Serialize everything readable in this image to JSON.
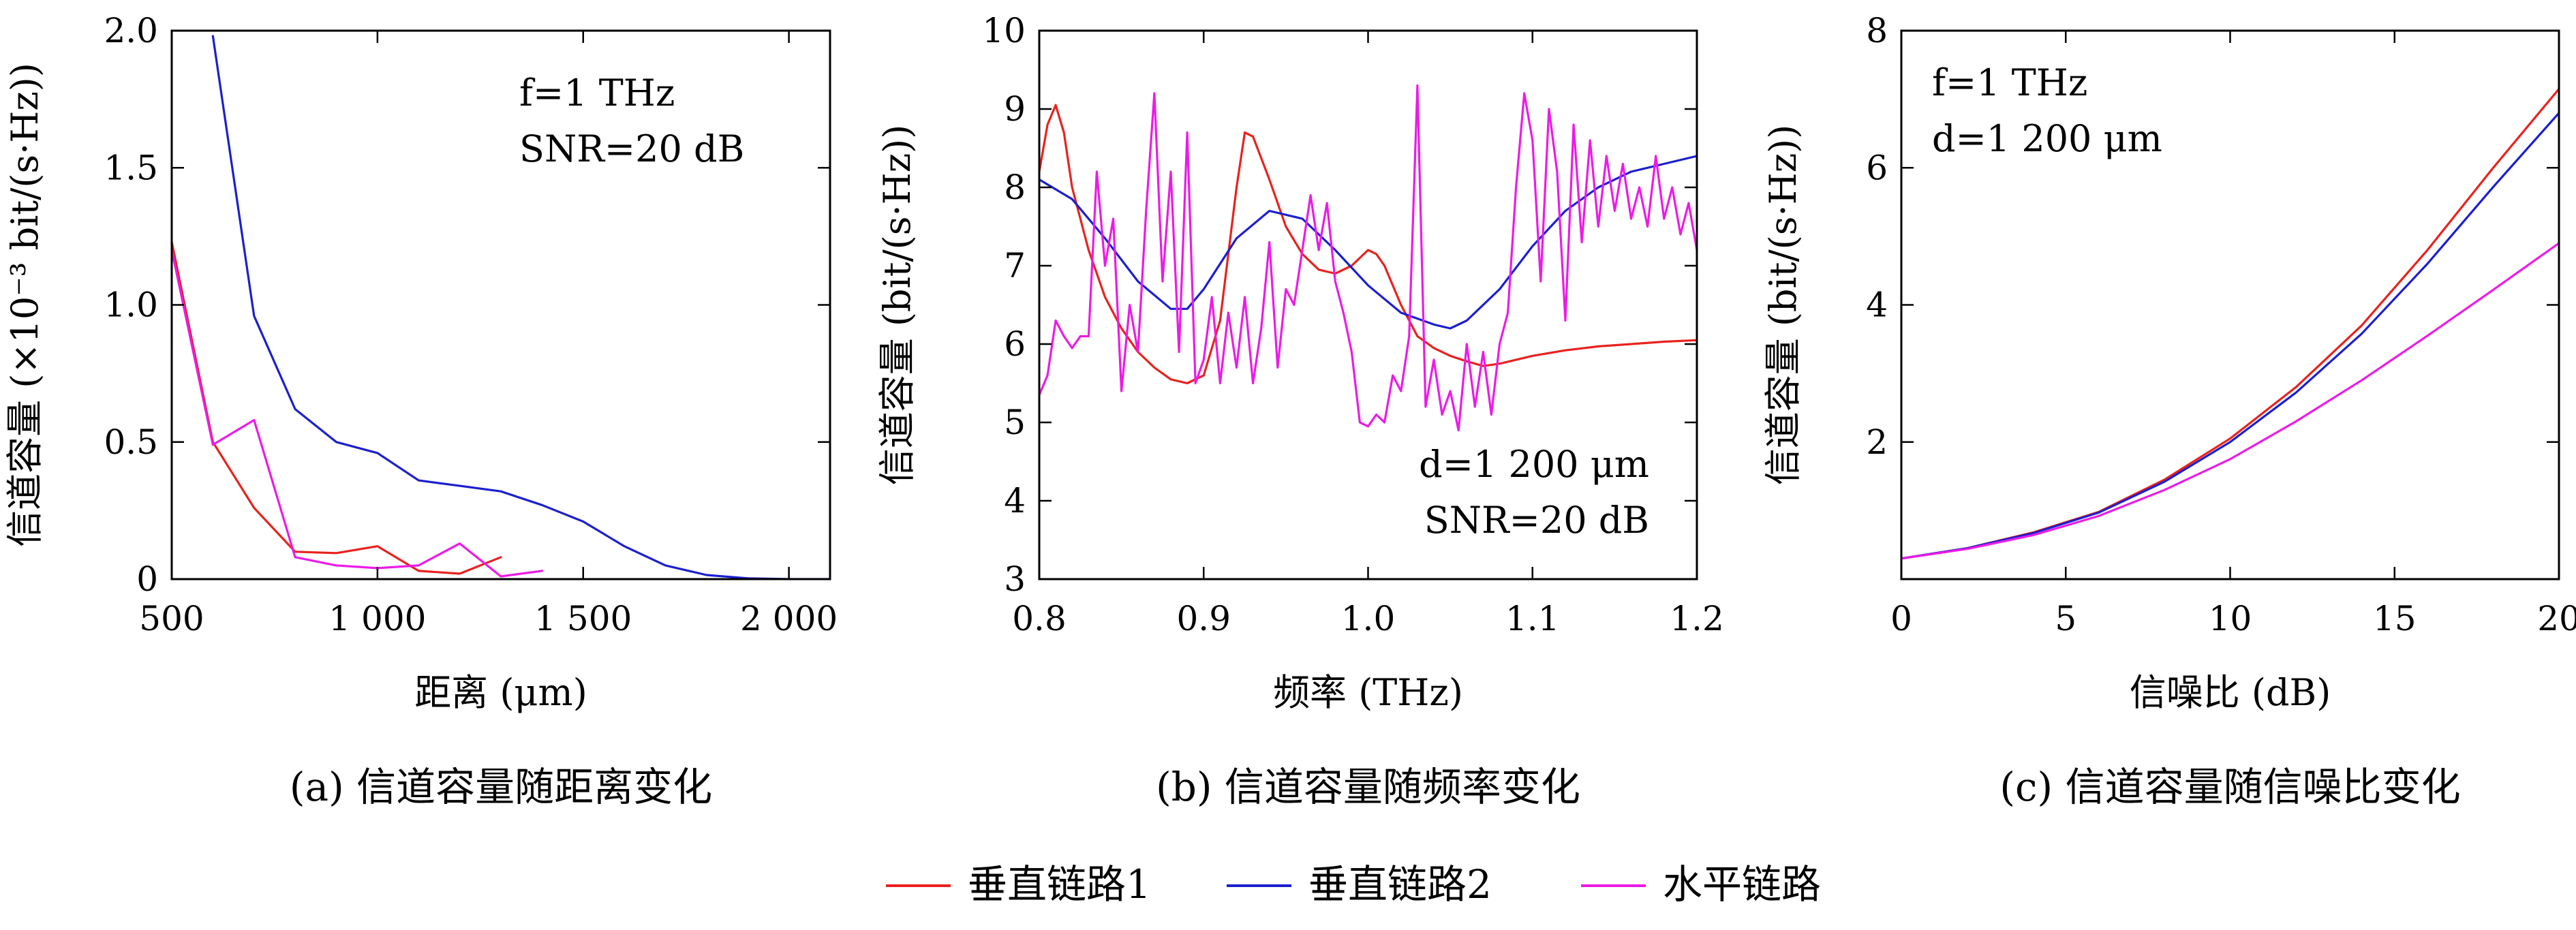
{
  "colors": {
    "red": "#e8221e",
    "blue": "#1b1fcf",
    "magenta": "#ec1be6"
  },
  "legend": [
    {
      "label": "垂直链路1",
      "color": "#e8221e"
    },
    {
      "label": "垂直链路2",
      "color": "#1b1fcf"
    },
    {
      "label": "水平链路",
      "color": "#ec1be6"
    }
  ],
  "chart_data": [
    {
      "type": "line",
      "caption": "(a) 信道容量随距离变化",
      "xlabel": "距离 (μm)",
      "ylabel": "信道容量 (×10⁻³ bit/(s·Hz))",
      "xlim": [
        500,
        2100
      ],
      "ylim": [
        0,
        2.0
      ],
      "xticks": [
        500,
        1000,
        1500,
        2000
      ],
      "xtick_labels": [
        "500",
        "1 000",
        "1 500",
        "2 000"
      ],
      "yticks": [
        0,
        0.5,
        1.0,
        1.5,
        2.0
      ],
      "ytick_labels": [
        "0",
        "0.5",
        "1.0",
        "1.5",
        "2.0"
      ],
      "annotations": [
        "f=1 THz",
        "SNR=20 dB"
      ],
      "series": [
        {
          "name": "垂直链路1",
          "color": "#e8221e",
          "x": [
            500,
            600,
            700,
            800,
            900,
            1000,
            1100,
            1200,
            1300
          ],
          "y": [
            1.23,
            0.5,
            0.26,
            0.1,
            0.095,
            0.12,
            0.03,
            0.02,
            0.08
          ]
        },
        {
          "name": "垂直链路2",
          "color": "#1b1fcf",
          "x": [
            600,
            700,
            800,
            900,
            1000,
            1100,
            1200,
            1300,
            1400,
            1500,
            1600,
            1700,
            1800,
            1900,
            2000,
            2100
          ],
          "y": [
            1.98,
            0.96,
            0.62,
            0.5,
            0.46,
            0.36,
            0.34,
            0.32,
            0.27,
            0.21,
            0.12,
            0.05,
            0.015,
            0.003,
            0.0,
            0.0
          ]
        },
        {
          "name": "水平链路",
          "color": "#ec1be6",
          "x": [
            500,
            600,
            700,
            800,
            900,
            1000,
            1100,
            1200,
            1300,
            1400
          ],
          "y": [
            1.2,
            0.49,
            0.58,
            0.08,
            0.05,
            0.04,
            0.05,
            0.13,
            0.01,
            0.03
          ]
        }
      ]
    },
    {
      "type": "line",
      "caption": "(b) 信道容量随频率变化",
      "xlabel": "频率 (THz)",
      "ylabel": "信道容量 (bit/(s·Hz))",
      "xlim": [
        0.8,
        1.2
      ],
      "ylim": [
        3,
        10
      ],
      "xticks": [
        0.8,
        0.9,
        1.0,
        1.1,
        1.2
      ],
      "xtick_labels": [
        "0.8",
        "0.9",
        "1.0",
        "1.1",
        "1.2"
      ],
      "yticks": [
        3,
        4,
        5,
        6,
        7,
        8,
        9,
        10
      ],
      "ytick_labels": [
        "3",
        "4",
        "5",
        "6",
        "7",
        "8",
        "9",
        "10"
      ],
      "annotations": [
        "d=1 200 μm",
        "SNR=20 dB"
      ],
      "series": [
        {
          "name": "垂直链路1",
          "color": "#e8221e",
          "x": [
            0.8,
            0.805,
            0.81,
            0.815,
            0.82,
            0.83,
            0.84,
            0.85,
            0.86,
            0.87,
            0.88,
            0.89,
            0.9,
            0.91,
            0.92,
            0.925,
            0.93,
            0.94,
            0.95,
            0.96,
            0.97,
            0.98,
            0.99,
            1.0,
            1.005,
            1.01,
            1.02,
            1.03,
            1.04,
            1.05,
            1.06,
            1.07,
            1.08,
            1.1,
            1.12,
            1.14,
            1.16,
            1.18,
            1.2
          ],
          "y": [
            8.2,
            8.8,
            9.05,
            8.7,
            8.0,
            7.2,
            6.6,
            6.2,
            5.9,
            5.7,
            5.55,
            5.5,
            5.6,
            6.3,
            8.0,
            8.7,
            8.65,
            8.1,
            7.5,
            7.15,
            6.95,
            6.9,
            7.0,
            7.2,
            7.15,
            7.0,
            6.5,
            6.1,
            5.95,
            5.85,
            5.78,
            5.72,
            5.75,
            5.85,
            5.92,
            5.97,
            6.0,
            6.03,
            6.05
          ]
        },
        {
          "name": "垂直链路2",
          "color": "#1b1fcf",
          "x": [
            0.8,
            0.82,
            0.84,
            0.86,
            0.88,
            0.89,
            0.9,
            0.92,
            0.94,
            0.96,
            0.98,
            1.0,
            1.02,
            1.04,
            1.05,
            1.06,
            1.08,
            1.1,
            1.12,
            1.14,
            1.16,
            1.18,
            1.2
          ],
          "y": [
            8.1,
            7.85,
            7.35,
            6.8,
            6.45,
            6.45,
            6.7,
            7.35,
            7.7,
            7.6,
            7.2,
            6.75,
            6.4,
            6.25,
            6.2,
            6.3,
            6.7,
            7.25,
            7.7,
            8.0,
            8.2,
            8.3,
            8.4
          ]
        },
        {
          "name": "水平链路",
          "color": "#ec1be6",
          "x": [
            0.8,
            0.805,
            0.81,
            0.815,
            0.82,
            0.825,
            0.83,
            0.835,
            0.84,
            0.845,
            0.85,
            0.855,
            0.86,
            0.865,
            0.87,
            0.875,
            0.88,
            0.885,
            0.89,
            0.895,
            0.9,
            0.905,
            0.91,
            0.915,
            0.92,
            0.925,
            0.93,
            0.935,
            0.94,
            0.945,
            0.95,
            0.955,
            0.96,
            0.965,
            0.97,
            0.975,
            0.98,
            0.985,
            0.99,
            0.995,
            1.0,
            1.005,
            1.01,
            1.015,
            1.02,
            1.025,
            1.03,
            1.035,
            1.04,
            1.045,
            1.05,
            1.055,
            1.06,
            1.065,
            1.07,
            1.075,
            1.08,
            1.085,
            1.09,
            1.095,
            1.1,
            1.105,
            1.11,
            1.115,
            1.12,
            1.125,
            1.13,
            1.135,
            1.14,
            1.145,
            1.15,
            1.155,
            1.16,
            1.165,
            1.17,
            1.175,
            1.18,
            1.185,
            1.19,
            1.195,
            1.2
          ],
          "y": [
            5.35,
            5.6,
            6.3,
            6.1,
            5.95,
            6.1,
            6.1,
            8.2,
            7.0,
            7.6,
            5.4,
            6.5,
            5.9,
            7.7,
            9.2,
            6.8,
            8.2,
            5.9,
            8.7,
            5.5,
            5.8,
            6.6,
            5.5,
            6.4,
            5.7,
            6.6,
            5.5,
            6.2,
            7.3,
            5.7,
            6.7,
            6.5,
            7.2,
            7.9,
            7.2,
            7.8,
            6.8,
            6.4,
            5.9,
            5.0,
            4.95,
            5.1,
            5.0,
            5.6,
            5.4,
            6.1,
            9.3,
            5.2,
            5.8,
            5.1,
            5.4,
            4.9,
            6.0,
            5.2,
            5.9,
            5.1,
            6.0,
            6.4,
            8.0,
            9.2,
            8.6,
            6.8,
            9.0,
            8.2,
            6.3,
            8.8,
            7.3,
            8.6,
            7.5,
            8.4,
            7.7,
            8.3,
            7.6,
            8.0,
            7.5,
            8.4,
            7.6,
            8.0,
            7.4,
            7.8,
            7.2
          ]
        }
      ]
    },
    {
      "type": "line",
      "caption": "(c) 信道容量随信噪比变化",
      "xlabel": "信噪比 (dB)",
      "ylabel": "信道容量 (bit/(s·Hz))",
      "xlim": [
        0,
        20
      ],
      "ylim": [
        0,
        8
      ],
      "xticks": [
        0,
        5,
        10,
        15,
        20
      ],
      "xtick_labels": [
        "0",
        "5",
        "10",
        "15",
        "20"
      ],
      "yticks": [
        2,
        4,
        6,
        8
      ],
      "ytick_labels": [
        "2",
        "4",
        "6",
        "8"
      ],
      "annotations": [
        "f=1 THz",
        "d=1 200 μm"
      ],
      "series": [
        {
          "name": "垂直链路1",
          "color": "#e8221e",
          "x": [
            0,
            2,
            4,
            6,
            8,
            10,
            12,
            14,
            16,
            18,
            20
          ],
          "y": [
            0.3,
            0.45,
            0.68,
            0.98,
            1.45,
            2.05,
            2.8,
            3.7,
            4.8,
            6.0,
            7.15
          ]
        },
        {
          "name": "垂直链路2",
          "color": "#1b1fcf",
          "x": [
            0,
            2,
            4,
            6,
            8,
            10,
            12,
            14,
            16,
            18,
            20
          ],
          "y": [
            0.3,
            0.45,
            0.67,
            0.97,
            1.42,
            2.0,
            2.72,
            3.58,
            4.6,
            5.72,
            6.8
          ]
        },
        {
          "name": "水平链路",
          "color": "#ec1be6",
          "x": [
            0,
            2,
            4,
            6,
            8,
            10,
            12,
            14,
            16,
            18,
            20
          ],
          "y": [
            0.3,
            0.44,
            0.64,
            0.92,
            1.3,
            1.75,
            2.3,
            2.9,
            3.55,
            4.22,
            4.9
          ]
        }
      ]
    }
  ]
}
